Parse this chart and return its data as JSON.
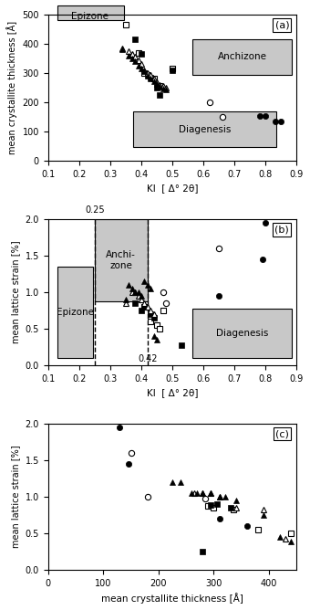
{
  "panel_a": {
    "title": "(a)",
    "xlabel": "KI  [ Δ° 2θ]",
    "ylabel": "mean crystallite thickness [Å]",
    "xlim": [
      0.1,
      0.9
    ],
    "ylim": [
      0,
      500
    ],
    "xticks": [
      0.1,
      0.2,
      0.3,
      0.4,
      0.5,
      0.6,
      0.7,
      0.8,
      0.9
    ],
    "yticks": [
      0,
      100,
      200,
      300,
      400,
      500
    ],
    "open_circle": [
      [
        0.62,
        200
      ],
      [
        0.66,
        150
      ]
    ],
    "filled_circle": [
      [
        0.78,
        155
      ],
      [
        0.8,
        155
      ],
      [
        0.83,
        135
      ],
      [
        0.85,
        135
      ]
    ],
    "open_square": [
      [
        0.35,
        465
      ],
      [
        0.39,
        370
      ],
      [
        0.41,
        300
      ],
      [
        0.44,
        280
      ],
      [
        0.46,
        255
      ],
      [
        0.5,
        315
      ]
    ],
    "filled_square": [
      [
        0.38,
        415
      ],
      [
        0.4,
        365
      ],
      [
        0.42,
        295
      ],
      [
        0.43,
        285
      ],
      [
        0.45,
        250
      ],
      [
        0.46,
        225
      ],
      [
        0.5,
        310
      ]
    ],
    "open_triangle": [
      [
        0.34,
        385
      ],
      [
        0.36,
        375
      ],
      [
        0.37,
        365
      ],
      [
        0.38,
        355
      ],
      [
        0.39,
        345
      ],
      [
        0.4,
        330
      ],
      [
        0.41,
        310
      ],
      [
        0.42,
        300
      ],
      [
        0.43,
        295
      ],
      [
        0.44,
        280
      ],
      [
        0.45,
        270
      ],
      [
        0.46,
        260
      ],
      [
        0.47,
        255
      ],
      [
        0.48,
        250
      ]
    ],
    "filled_triangle": [
      [
        0.34,
        380
      ],
      [
        0.36,
        360
      ],
      [
        0.37,
        350
      ],
      [
        0.38,
        340
      ],
      [
        0.39,
        325
      ],
      [
        0.4,
        315
      ],
      [
        0.41,
        305
      ],
      [
        0.42,
        290
      ],
      [
        0.43,
        280
      ],
      [
        0.44,
        272
      ],
      [
        0.45,
        263
      ],
      [
        0.46,
        253
      ],
      [
        0.47,
        248
      ],
      [
        0.48,
        243
      ]
    ]
  },
  "panel_b": {
    "title": "(b)",
    "xlabel": "KI  [ Δ° 2θ]",
    "ylabel": "mean lattice strain [%]",
    "xlim": [
      0.1,
      0.9
    ],
    "ylim": [
      0.0,
      2.0
    ],
    "xticks": [
      0.1,
      0.2,
      0.3,
      0.4,
      0.5,
      0.6,
      0.7,
      0.8,
      0.9
    ],
    "yticks": [
      0.0,
      0.5,
      1.0,
      1.5,
      2.0
    ],
    "dashed_lines": [
      0.25,
      0.42
    ],
    "open_circle": [
      [
        0.65,
        1.6
      ],
      [
        0.47,
        1.0
      ],
      [
        0.48,
        0.85
      ]
    ],
    "filled_circle": [
      [
        0.8,
        1.95
      ],
      [
        0.79,
        1.45
      ],
      [
        0.65,
        0.95
      ]
    ],
    "open_square": [
      [
        0.41,
        0.8
      ],
      [
        0.43,
        0.6
      ],
      [
        0.45,
        0.55
      ],
      [
        0.46,
        0.5
      ],
      [
        0.47,
        0.75
      ]
    ],
    "filled_square": [
      [
        0.38,
        0.85
      ],
      [
        0.4,
        0.75
      ],
      [
        0.41,
        0.8
      ],
      [
        0.43,
        0.7
      ],
      [
        0.44,
        0.65
      ],
      [
        0.53,
        0.28
      ]
    ],
    "open_triangle": [
      [
        0.35,
        0.85
      ],
      [
        0.37,
        1.0
      ],
      [
        0.38,
        1.0
      ],
      [
        0.39,
        0.95
      ],
      [
        0.4,
        0.9
      ],
      [
        0.41,
        0.85
      ],
      [
        0.42,
        0.8
      ],
      [
        0.43,
        0.75
      ],
      [
        0.44,
        0.7
      ]
    ],
    "filled_triangle": [
      [
        0.35,
        0.9
      ],
      [
        0.36,
        1.1
      ],
      [
        0.37,
        1.05
      ],
      [
        0.38,
        1.0
      ],
      [
        0.39,
        1.0
      ],
      [
        0.4,
        0.95
      ],
      [
        0.41,
        1.15
      ],
      [
        0.42,
        1.1
      ],
      [
        0.43,
        1.05
      ],
      [
        0.44,
        0.4
      ],
      [
        0.45,
        0.35
      ]
    ]
  },
  "panel_c": {
    "title": "(c)",
    "xlabel": "mean crystallite thickness [Å]",
    "ylabel": "mean lattice strain [%]",
    "xlim": [
      0,
      450
    ],
    "ylim": [
      0.0,
      2.0
    ],
    "xticks": [
      0,
      100,
      200,
      300,
      400
    ],
    "yticks": [
      0.0,
      0.5,
      1.0,
      1.5,
      2.0
    ],
    "open_circle": [
      [
        150,
        1.6
      ],
      [
        180,
        1.0
      ],
      [
        285,
        0.97
      ]
    ],
    "filled_circle": [
      [
        130,
        1.95
      ],
      [
        145,
        1.45
      ],
      [
        310,
        0.7
      ],
      [
        360,
        0.6
      ]
    ],
    "open_square": [
      [
        290,
        0.87
      ],
      [
        300,
        0.85
      ],
      [
        335,
        0.82
      ],
      [
        380,
        0.55
      ],
      [
        440,
        0.5
      ]
    ],
    "filled_square": [
      [
        280,
        0.25
      ],
      [
        295,
        0.88
      ],
      [
        305,
        0.9
      ],
      [
        330,
        0.85
      ]
    ],
    "open_triangle": [
      [
        265,
        1.05
      ],
      [
        280,
        1.05
      ],
      [
        295,
        1.05
      ],
      [
        310,
        1.0
      ],
      [
        340,
        0.85
      ],
      [
        390,
        0.82
      ],
      [
        430,
        0.42
      ]
    ],
    "filled_triangle": [
      [
        225,
        1.2
      ],
      [
        240,
        1.2
      ],
      [
        260,
        1.05
      ],
      [
        270,
        1.05
      ],
      [
        280,
        1.05
      ],
      [
        295,
        1.05
      ],
      [
        310,
        1.0
      ],
      [
        320,
        1.0
      ],
      [
        340,
        0.95
      ],
      [
        390,
        0.75
      ],
      [
        420,
        0.45
      ],
      [
        440,
        0.38
      ]
    ]
  },
  "zone_color": "#c8c8c8",
  "marker_size": 4.5,
  "bg_color": "#ffffff"
}
